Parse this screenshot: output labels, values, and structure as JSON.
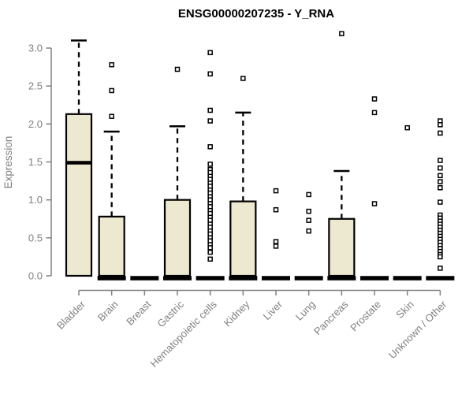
{
  "chart_data": {
    "type": "boxplot",
    "title": "ENSG00000207235 - Y_RNA",
    "xlabel": "",
    "ylabel": "Expression",
    "ylim": [
      0,
      3.2
    ],
    "yticks": [
      0.0,
      0.5,
      1.0,
      1.5,
      2.0,
      2.5,
      3.0
    ],
    "ytick_labels": [
      "0.0",
      "0.5",
      "1.0",
      "1.5",
      "2.0",
      "2.5",
      "3.0"
    ],
    "grid": false,
    "legend": "none",
    "categories": [
      "Bladder",
      "Brain",
      "Breast",
      "Gastric",
      "Hematopoietic cells",
      "Kidney",
      "Liver",
      "Lung",
      "Pancreas",
      "Prostate",
      "Skin",
      "Unknown / Other"
    ],
    "series": [
      {
        "name": "Bladder",
        "q1": 0,
        "median": 1.49,
        "q3": 2.13,
        "whisker_low": 0,
        "whisker_high": 3.1,
        "outliers": []
      },
      {
        "name": "Brain",
        "q1": 0,
        "median": 0.02,
        "q3": 0.78,
        "whisker_low": 0,
        "whisker_high": 1.9,
        "outliers": [
          2.78,
          2.44,
          2.1
        ]
      },
      {
        "name": "Breast",
        "q1": 0,
        "median": 0,
        "q3": 0,
        "whisker_low": 0,
        "whisker_high": 0,
        "outliers": []
      },
      {
        "name": "Gastric",
        "q1": 0,
        "median": 0.02,
        "q3": 1.0,
        "whisker_low": 0,
        "whisker_high": 1.97,
        "outliers": [
          2.72
        ]
      },
      {
        "name": "Hematopoietic cells",
        "q1": 0,
        "median": 0,
        "q3": 0,
        "whisker_low": 0,
        "whisker_high": 0,
        "outliers": [
          2.94,
          2.66,
          2.18,
          2.04,
          1.7,
          1.47,
          1.4,
          1.36,
          1.31,
          1.27,
          1.22,
          1.18,
          1.13,
          1.09,
          1.04,
          1.0,
          0.95,
          0.91,
          0.86,
          0.82,
          0.77,
          0.73,
          0.68,
          0.64,
          0.59,
          0.55,
          0.5,
          0.46,
          0.41,
          0.37,
          0.31,
          0.22
        ]
      },
      {
        "name": "Kidney",
        "q1": 0,
        "median": 0.02,
        "q3": 0.98,
        "whisker_low": 0,
        "whisker_high": 2.15,
        "outliers": [
          2.6
        ]
      },
      {
        "name": "Liver",
        "q1": 0,
        "median": 0,
        "q3": 0,
        "whisker_low": 0,
        "whisker_high": 0,
        "outliers": [
          1.12,
          0.87,
          0.45,
          0.39
        ]
      },
      {
        "name": "Lung",
        "q1": 0,
        "median": 0,
        "q3": 0,
        "whisker_low": 0,
        "whisker_high": 0,
        "outliers": [
          1.07,
          0.85,
          0.73,
          0.59
        ]
      },
      {
        "name": "Pancreas",
        "q1": 0,
        "median": 0.02,
        "q3": 0.75,
        "whisker_low": 0,
        "whisker_high": 1.38,
        "outliers": [
          3.19
        ]
      },
      {
        "name": "Prostate",
        "q1": 0,
        "median": 0,
        "q3": 0,
        "whisker_low": 0,
        "whisker_high": 0,
        "outliers": [
          2.33,
          2.15,
          0.95
        ]
      },
      {
        "name": "Skin",
        "q1": 0,
        "median": 0,
        "q3": 0,
        "whisker_low": 0,
        "whisker_high": 0,
        "outliers": [
          1.95
        ]
      },
      {
        "name": "Unknown / Other",
        "q1": 0,
        "median": 0,
        "q3": 0,
        "whisker_low": 0,
        "whisker_high": 0,
        "outliers": [
          2.04,
          1.99,
          1.88,
          1.52,
          1.42,
          1.32,
          1.24,
          1.16,
          0.97,
          0.8,
          0.76,
          0.72,
          0.68,
          0.64,
          0.6,
          0.56,
          0.52,
          0.48,
          0.44,
          0.4,
          0.36,
          0.32,
          0.28,
          0.25,
          0.1
        ]
      }
    ],
    "colors": {
      "background": "#FFFFFF",
      "box_fill": "#EDE8D0",
      "box_stroke": "#000000",
      "median": "#000000",
      "whisker": "#000000",
      "outlier_stroke": "#000000",
      "outlier_fill": "#FFFFFF",
      "axis": "#808080",
      "tick_label": "#808080",
      "title": "#000000"
    }
  }
}
